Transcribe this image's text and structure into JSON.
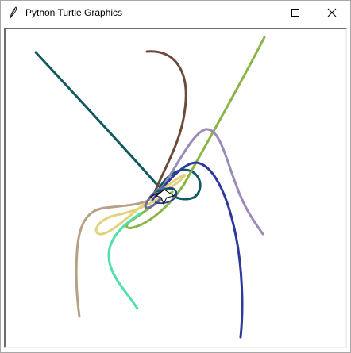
{
  "window": {
    "title": "Python Turtle Graphics",
    "icon": "feather-icon",
    "controls": [
      "minimize-icon",
      "maximize-icon",
      "close-icon"
    ]
  },
  "canvas": {
    "background": "#ffffff",
    "curve_colors": {
      "dark_teal": "#0e5a60",
      "brown": "#6b4a3a",
      "olive_green": "#8ab447",
      "lavender": "#9a8ab8",
      "navy_blue": "#2c3a9c",
      "tan": "#b8a088",
      "pale_yellow": "#e2d27a",
      "mint": "#4fe0a8",
      "slate": "#6a6ca0"
    },
    "cursor": "turtle-arrow-icon"
  }
}
